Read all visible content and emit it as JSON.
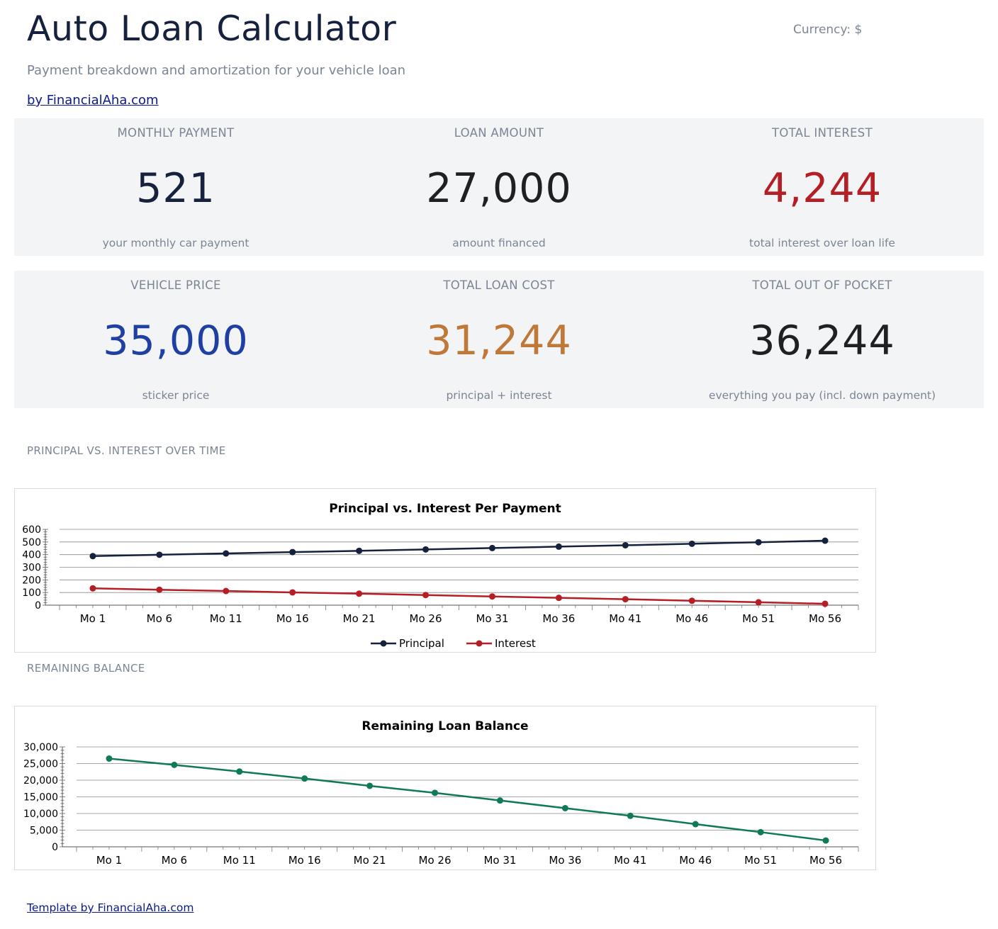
{
  "header": {
    "title": "Auto Loan Calculator",
    "currency": "Currency: $",
    "subtitle": "Payment breakdown and amortization for your vehicle loan",
    "byline": "by FinancialAha.com"
  },
  "kpis_row1": [
    {
      "label": "MONTHLY PAYMENT",
      "value": "521",
      "note": "your monthly car payment",
      "color": "#16213e"
    },
    {
      "label": "LOAN AMOUNT",
      "value": "27,000",
      "note": "amount financed",
      "color": "#1f2023"
    },
    {
      "label": "TOTAL INTEREST",
      "value": "4,244",
      "note": "total interest over loan life",
      "color": "#b41e24"
    }
  ],
  "kpis_row2": [
    {
      "label": "VEHICLE PRICE",
      "value": "35,000",
      "note": "sticker price",
      "color": "#1f3fa3"
    },
    {
      "label": "TOTAL LOAN COST",
      "value": "31,244",
      "note": "principal + interest",
      "color": "#c07838"
    },
    {
      "label": "TOTAL OUT OF POCKET",
      "value": "36,244",
      "note": "everything you pay (incl. down payment)",
      "color": "#1f2023"
    }
  ],
  "sections": {
    "principal_vs_interest": "PRINCIPAL VS. INTEREST OVER TIME",
    "remaining_balance": "REMAINING BALANCE"
  },
  "footer": {
    "link": "Template by FinancialAha.com"
  },
  "chart_data": [
    {
      "type": "line",
      "title": "Principal vs. Interest Per Payment",
      "categories": [
        "Mo 1",
        "Mo 6",
        "Mo 11",
        "Mo 16",
        "Mo 21",
        "Mo 26",
        "Mo 31",
        "Mo 36",
        "Mo 41",
        "Mo 46",
        "Mo 51",
        "Mo 56"
      ],
      "yticks": [
        "0",
        "100",
        "200",
        "300",
        "400",
        "500",
        "600"
      ],
      "ylim": [
        0,
        600
      ],
      "series": [
        {
          "name": "Principal",
          "color": "#16213e",
          "values": [
            388,
            399,
            409,
            420,
            430,
            441,
            452,
            463,
            474,
            486,
            498,
            510
          ]
        },
        {
          "name": "Interest",
          "color": "#b41e24",
          "values": [
            133,
            122,
            112,
            101,
            91,
            80,
            69,
            58,
            47,
            35,
            23,
            11
          ]
        }
      ],
      "legend": "bottom",
      "grid": true
    },
    {
      "type": "line",
      "title": "Remaining Loan Balance",
      "categories": [
        "Mo 1",
        "Mo 6",
        "Mo 11",
        "Mo 16",
        "Mo 21",
        "Mo 26",
        "Mo 31",
        "Mo 36",
        "Mo 41",
        "Mo 46",
        "Mo 51",
        "Mo 56"
      ],
      "yticks": [
        "0",
        "5,000",
        "10,000",
        "15,000",
        "20,000",
        "25,000",
        "30,000"
      ],
      "ylim": [
        0,
        30000
      ],
      "series": [
        {
          "color": "#0f7a55",
          "values": [
            26500,
            24600,
            22600,
            20500,
            18300,
            16200,
            13900,
            11600,
            9300,
            6800,
            4400,
            1900
          ]
        }
      ],
      "grid": true
    }
  ]
}
